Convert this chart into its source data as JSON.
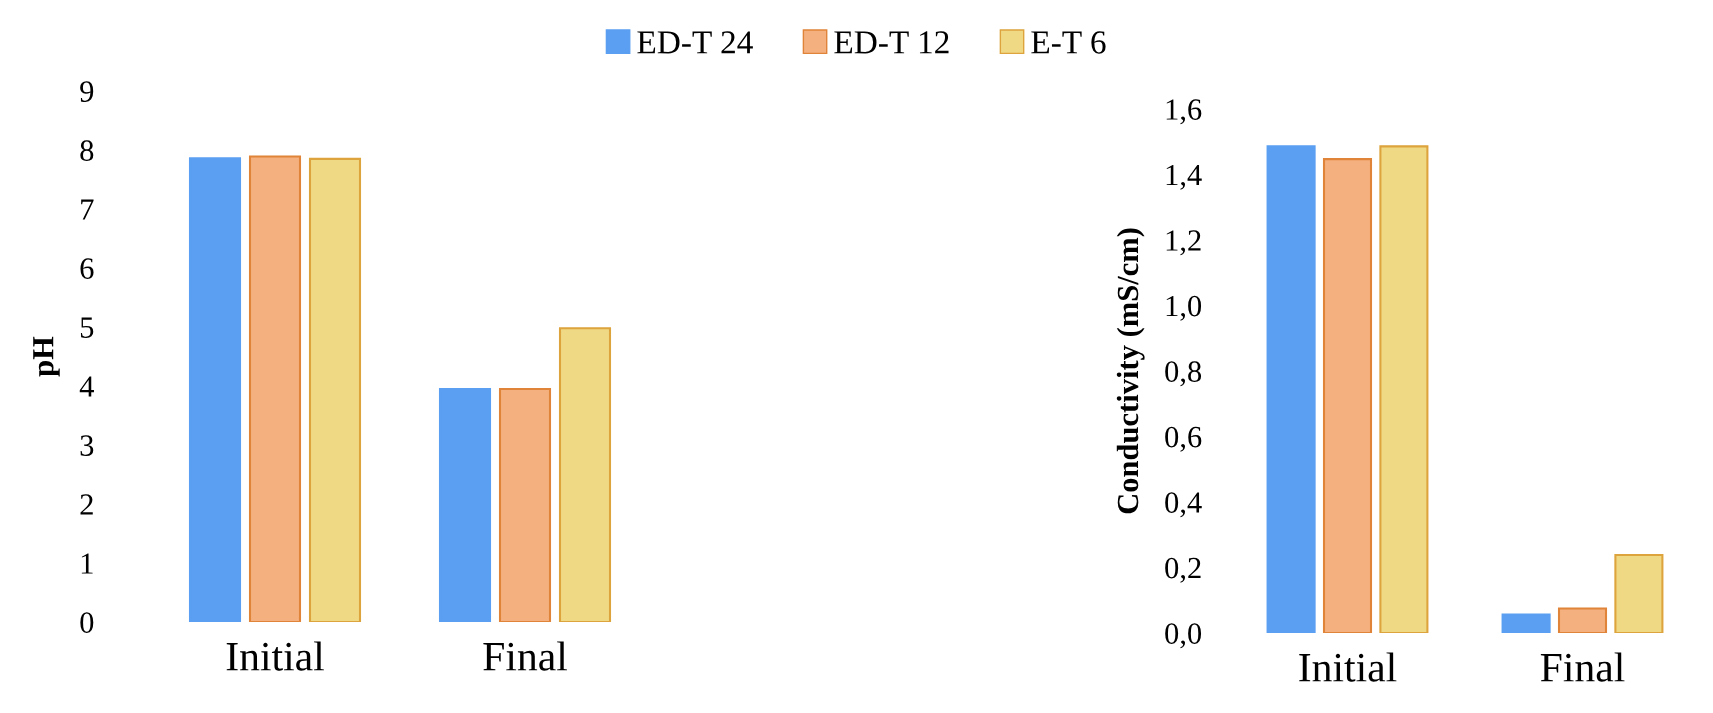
{
  "chart_data": [
    {
      "type": "bar",
      "ylabel": "pH",
      "categories": [
        "Initial",
        "Final"
      ],
      "legend": "top",
      "grid": false,
      "series": [
        {
          "name": "ED-T 24",
          "color": "#5b9ff2",
          "values": [
            7.86,
            3.95
          ]
        },
        {
          "name": "ED-T 12",
          "color": "#f4b07f",
          "values": [
            7.89,
            3.95
          ]
        },
        {
          "name": "E-T 6",
          "color": "#f0d985",
          "values": [
            7.85,
            4.98
          ]
        }
      ],
      "ylim": [
        0,
        9
      ],
      "yticks": [
        0,
        1,
        2,
        3,
        4,
        5,
        6,
        7,
        8,
        9
      ]
    },
    {
      "type": "bar",
      "ylabel": "Conductivity (mS/cm)",
      "categories": [
        "Initial",
        "Final"
      ],
      "grid": false,
      "series": [
        {
          "color": "#5b9ff2",
          "values": [
            1.486,
            0.056
          ]
        },
        {
          "color": "#f4b07f",
          "values": [
            1.447,
            0.075
          ]
        },
        {
          "color": "#f0d985",
          "values": [
            1.486,
            0.238
          ]
        }
      ],
      "ylim": [
        0,
        1.6
      ],
      "yticks": [
        {
          "value": 0,
          "label": "0,0"
        },
        {
          "value": 0.2,
          "label": "0,2"
        },
        {
          "value": 0.4,
          "label": "0,4"
        },
        {
          "value": 0.6,
          "label": "0,6"
        },
        {
          "value": 0.8,
          "label": "0,8"
        },
        {
          "value": 1.0,
          "label": "1,0"
        },
        {
          "value": 1.2,
          "label": "1,2"
        },
        {
          "value": 1.4,
          "label": "1,4"
        },
        {
          "value": 1.6,
          "label": "1,6"
        }
      ]
    }
  ]
}
